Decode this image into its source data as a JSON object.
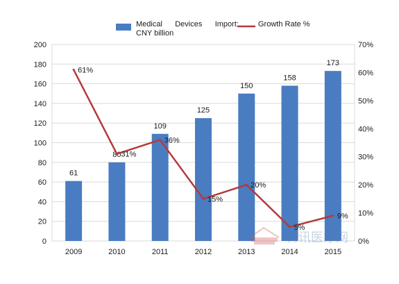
{
  "chart_data": {
    "type": "bar",
    "categories": [
      "2009",
      "2010",
      "2011",
      "2012",
      "2013",
      "2014",
      "2015"
    ],
    "series": [
      {
        "name": "Medical Devices Import: CNY billion",
        "type": "bar",
        "axis": "left",
        "values": [
          61,
          80,
          109,
          125,
          150,
          158,
          173
        ],
        "labels": [
          "61",
          "80",
          "109",
          "125",
          "150",
          "158",
          "173"
        ],
        "color": "#4a7cc1"
      },
      {
        "name": "Growth Rate %",
        "type": "line",
        "axis": "right",
        "values": [
          61,
          31,
          36,
          15,
          20,
          5,
          9
        ],
        "labels": [
          "61%",
          "31%",
          "36%",
          "15%",
          "20%",
          "5%",
          "9%"
        ],
        "color": "#b23b3b"
      }
    ],
    "y_left": {
      "min": 0,
      "max": 200,
      "step": 20,
      "ticks": [
        "0",
        "20",
        "40",
        "60",
        "80",
        "100",
        "120",
        "140",
        "160",
        "180",
        "200"
      ]
    },
    "y_right": {
      "min": 0,
      "max": 70,
      "step": 10,
      "ticks": [
        "0%",
        "10%",
        "20%",
        "30%",
        "40%",
        "50%",
        "60%",
        "70%"
      ]
    },
    "grid": true,
    "legend": {
      "position": "top",
      "bar_label_line1": "Medical      Devices      Import:",
      "bar_label_line2": "CNY billion",
      "line_label": "Growth Rate %"
    },
    "watermark": "科讯医疗网"
  }
}
